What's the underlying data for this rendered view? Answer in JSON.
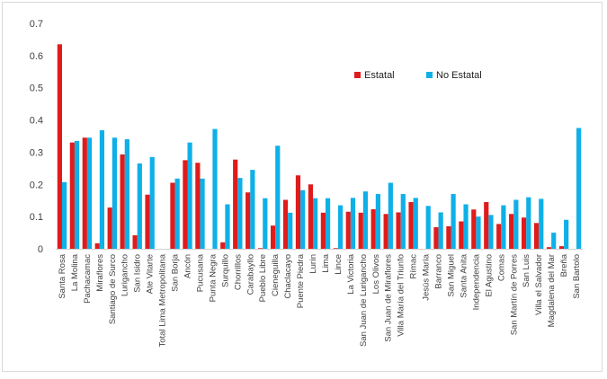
{
  "chart_data": {
    "type": "bar",
    "categories": [
      "Santa Rosa",
      "La Molina",
      "Pachacamac",
      "Miraflores",
      "Santiago de Surco",
      "Lurigancho",
      "San Isidro",
      "Ate Vitarte",
      "Total Lima Metropolitana",
      "San Borja",
      "Ancón",
      "Pucusana",
      "Punta Negra",
      "Surquillo",
      "Chorrillos",
      "Carabayllo",
      "Pueblo Libre",
      "Cieneguilla",
      "Chaclacayo",
      "Puente Piedra",
      "Lurín",
      "Lima",
      "Lince",
      "La Victoria",
      "San Juan de Lurigancho",
      "Los Olivos",
      "San Juan de Miraflores",
      "Villa María del Triunfo",
      "Rímac",
      "Jesús María",
      "Barranco",
      "San Miguel",
      "Santa Anita",
      "Independencia",
      "El Agustino",
      "Comas",
      "San Martín de Porres",
      "San Luis",
      "Villa el Salvador",
      "Magdalena del Mar",
      "Breña",
      "San Bartolo"
    ],
    "series": [
      {
        "name": "Estatal",
        "color": "#e01b1b",
        "values": [
          0.635,
          0.33,
          0.345,
          0.017,
          0.128,
          0.293,
          0.042,
          0.168,
          0,
          0.205,
          0.275,
          0.267,
          0,
          0.02,
          0.277,
          0.175,
          0.002,
          0.072,
          0.152,
          0.228,
          0.2,
          0.112,
          0.002,
          0.115,
          0.112,
          0.123,
          0.108,
          0.113,
          0.145,
          0,
          0.067,
          0.07,
          0.085,
          0.122,
          0.145,
          0.077,
          0.108,
          0.097,
          0.08,
          0.005,
          0.008,
          0
        ]
      },
      {
        "name": "No Estatal",
        "color": "#0fb0e8",
        "values": [
          0.207,
          0.335,
          0.345,
          0.368,
          0.345,
          0.34,
          0.265,
          0.285,
          0,
          0.218,
          0.33,
          0.218,
          0.372,
          0.138,
          0.22,
          0.245,
          0.157,
          0.32,
          0.112,
          0.182,
          0.157,
          0.157,
          0.135,
          0.158,
          0.178,
          0.17,
          0.205,
          0.17,
          0.158,
          0.133,
          0.113,
          0.17,
          0.138,
          0.1,
          0.105,
          0.135,
          0.152,
          0.16,
          0.155,
          0.05,
          0.09,
          0.375
        ]
      }
    ],
    "yticks": [
      "0",
      "0.1",
      "0.2",
      "0.3",
      "0.4",
      "0.5",
      "0.6",
      "0.7"
    ],
    "ylim": [
      0,
      0.7
    ],
    "grid": false,
    "legend": "upper-right-inside"
  }
}
